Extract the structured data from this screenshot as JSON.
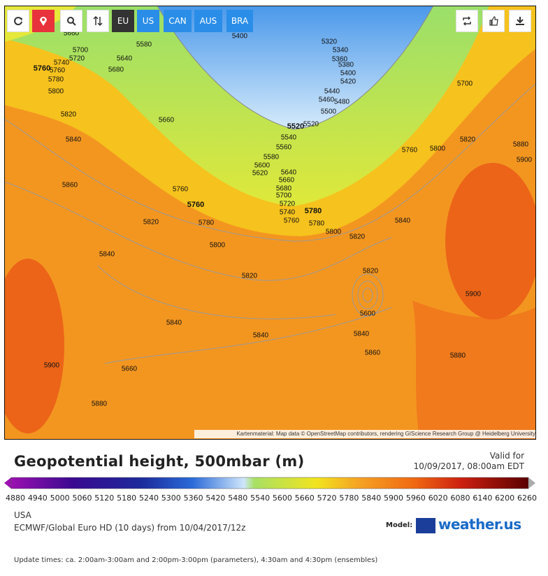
{
  "toolbar": {
    "regions": [
      "EU",
      "US",
      "CAN",
      "AUS",
      "BRA"
    ]
  },
  "map": {
    "contour_labels": [
      5660,
      5580,
      5400,
      5320,
      5340,
      5360,
      5380,
      5400,
      5420,
      5440,
      5460,
      5480,
      5500,
      5520,
      5520,
      5540,
      5560,
      5580,
      5600,
      5620,
      5640,
      5660,
      5680,
      5700,
      5720,
      5740,
      5760,
      5780,
      5780,
      5800,
      5820,
      5700,
      5720,
      5740,
      5760,
      5760,
      5640,
      5680,
      5780,
      5800,
      5820,
      5660,
      5840,
      5860,
      5760,
      5760,
      5820,
      5780,
      5800,
      5840,
      5820,
      5820,
      5600,
      5840,
      5840,
      5840,
      5860,
      5900,
      5660,
      5880,
      5880,
      5900,
      5840,
      5760,
      5800,
      5820,
      5880,
      5900,
      5700
    ],
    "attribution": "Kartenmaterial: Map data © OpenStreetMap contributors, rendering GIScience Research Group @ Heidelberg University"
  },
  "title": "Geopotential height, 500mbar (m)",
  "valid_for": "Valid for",
  "valid_date": "10/09/2017, 08:00am EDT",
  "colorbar": {
    "ticks": [
      4880,
      4940,
      5000,
      5060,
      5120,
      5180,
      5240,
      5300,
      5360,
      5420,
      5480,
      5540,
      5600,
      5660,
      5720,
      5780,
      5840,
      5900,
      5960,
      6020,
      6080,
      6140,
      6200,
      6260
    ]
  },
  "region": "USA",
  "model_run": "ECMWF/Global Euro HD (10 days) from 10/04/2017/12z",
  "model_label": "Model:",
  "brand": "weather.us",
  "update_times": "Update times: ca. 2:00am-3:00am and 2:00pm-3:00pm (parameters), 4:30am and 4:30pm (ensembles)"
}
